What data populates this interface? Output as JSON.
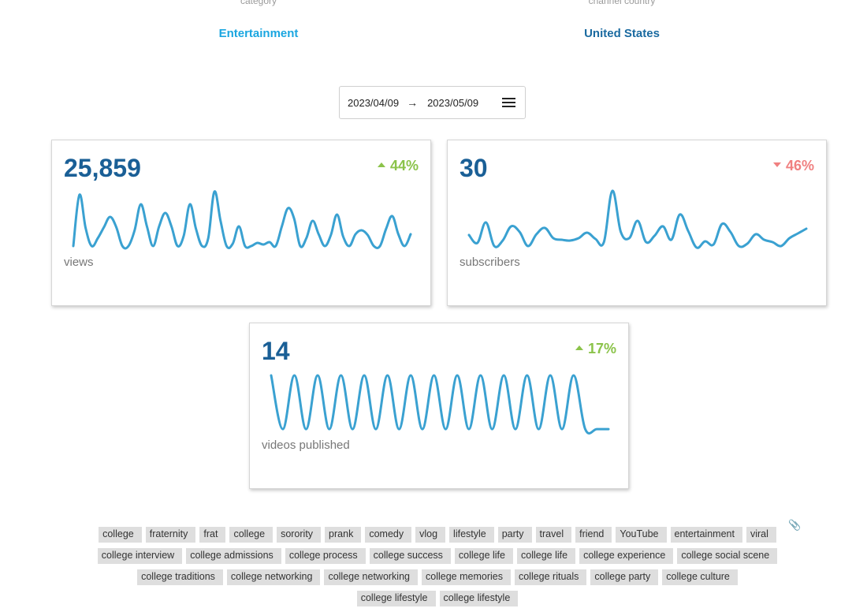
{
  "header": {
    "category_label": "category",
    "category_value": "Entertainment",
    "country_label": "channel country",
    "country_value": "United States"
  },
  "date_range": {
    "start": "2023/04/09",
    "arrow": "→",
    "end": "2023/05/09",
    "menu_icon": "menu-icon"
  },
  "cards": {
    "views": {
      "value": "25,859",
      "change": "44%",
      "direction": "up",
      "label": "views"
    },
    "subscribers": {
      "value": "30",
      "change": "46%",
      "direction": "down",
      "label": "subscribers"
    },
    "videos": {
      "value": "14",
      "change": "17%",
      "direction": "up",
      "label": "videos published"
    }
  },
  "sparklines": {
    "color": "#3aa1d1",
    "views": [
      70,
      5,
      47,
      70,
      60,
      46,
      33,
      46,
      70,
      70,
      50,
      17,
      45,
      70,
      45,
      28,
      45,
      70,
      57,
      17,
      48,
      70,
      60,
      1,
      38,
      70,
      67,
      45,
      70,
      70,
      66,
      68,
      65,
      70,
      45,
      22,
      35,
      70,
      60,
      38,
      55,
      70,
      56,
      30,
      58,
      70,
      55,
      50,
      56,
      70,
      70,
      48,
      32,
      55,
      70,
      55
    ],
    "subscribers": [
      56,
      66,
      40,
      70,
      63,
      45,
      52,
      70,
      55,
      47,
      60,
      62,
      63,
      60,
      53,
      61,
      65,
      0,
      52,
      60,
      38,
      65,
      57,
      45,
      62,
      30,
      51,
      72,
      64,
      68,
      42,
      52,
      70,
      67,
      55,
      62,
      65,
      70,
      60,
      54,
      48
    ],
    "videos": [
      0,
      70,
      0,
      70,
      0,
      70,
      0,
      70,
      0,
      70,
      0,
      70,
      0,
      70,
      0,
      70,
      0,
      70,
      0,
      70,
      0,
      70,
      0,
      70,
      0,
      70,
      0,
      70,
      70,
      70
    ]
  },
  "tags": {
    "rows": [
      [
        "college",
        "fraternity",
        "frat",
        "college",
        "sorority",
        "prank",
        "comedy",
        "vlog",
        "lifestyle",
        "party",
        "travel",
        "friend",
        "YouTube",
        "entertainment",
        "viral"
      ],
      [
        "college interview",
        "college admissions",
        "college process",
        "college success",
        "college life",
        "college life",
        "college experience",
        "college social scene"
      ],
      [
        "college traditions",
        "college networking",
        "college networking",
        "college memories",
        "college rituals",
        "college party",
        "college culture"
      ],
      [
        "college lifestyle",
        "college lifestyle"
      ]
    ],
    "edit_icon": "paperclip-icon"
  }
}
